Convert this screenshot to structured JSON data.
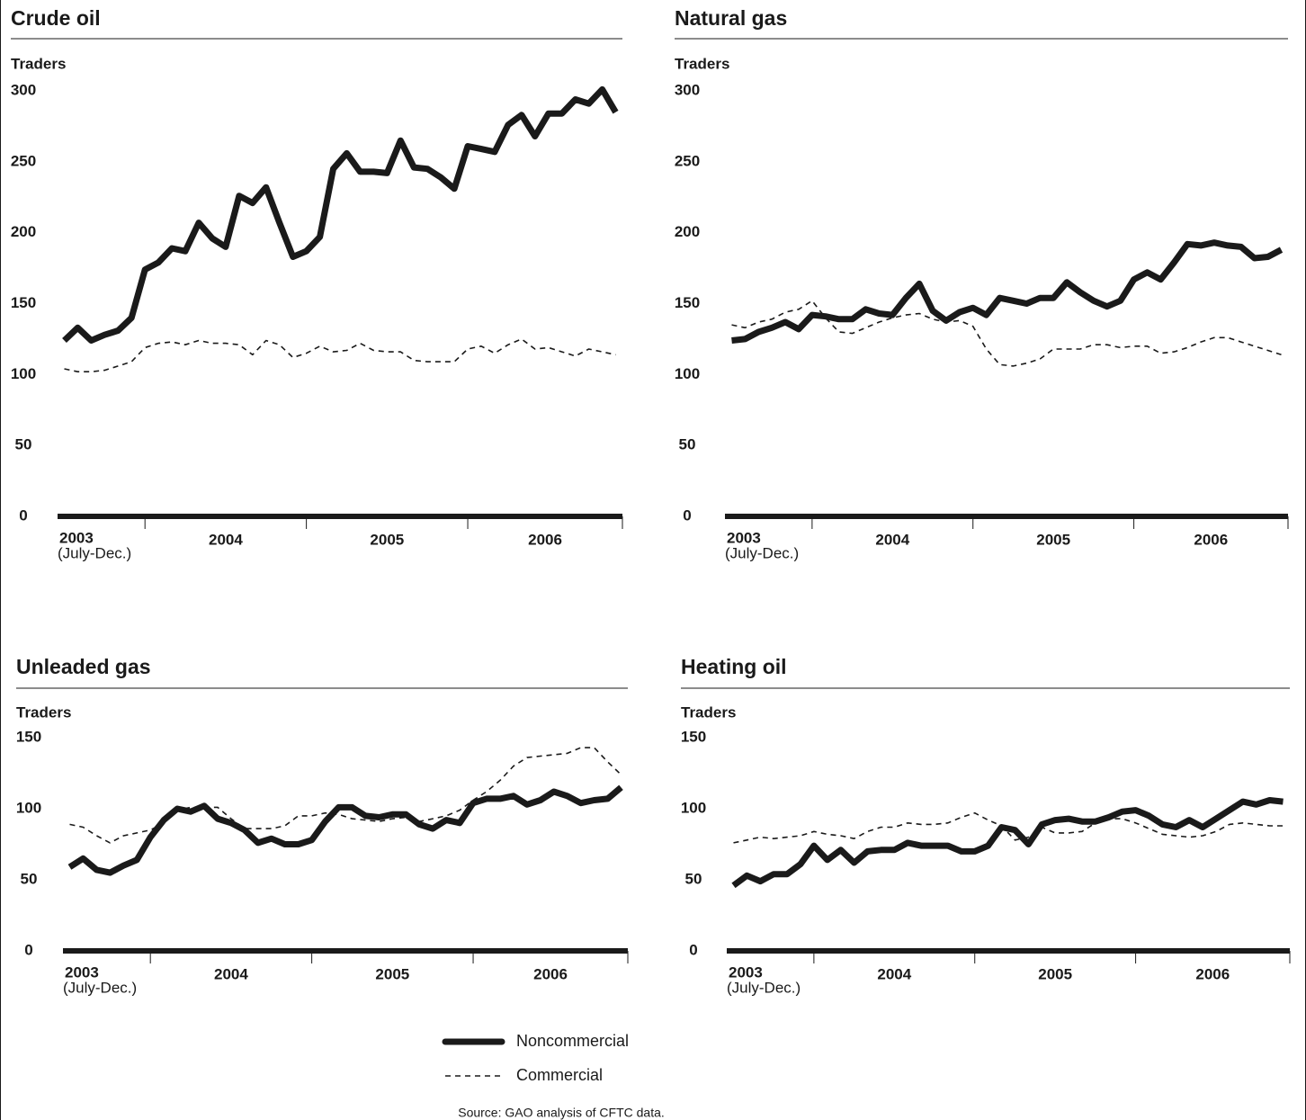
{
  "chart_data": [
    {
      "type": "line",
      "title": "Crude oil",
      "y_label": "Traders",
      "categories": [
        "2003",
        null,
        null,
        null,
        null,
        null,
        "2004",
        null,
        null,
        null,
        null,
        null,
        null,
        null,
        null,
        null,
        null,
        null,
        "2005",
        null,
        null,
        null,
        null,
        null,
        null,
        null,
        null,
        null,
        null,
        null,
        "2006",
        null,
        null,
        null,
        null,
        null,
        null,
        null,
        null,
        null,
        null,
        null
      ],
      "x_note": "(July-Dec.)",
      "ylim": [
        0,
        300
      ],
      "yticks": [
        0,
        50,
        100,
        150,
        200,
        250,
        300
      ],
      "series": [
        {
          "name": "Noncommercial",
          "color": "#1a1a1a",
          "style": "solid",
          "values": [
            124,
            133,
            124,
            128,
            131,
            140,
            174,
            179,
            189,
            187,
            207,
            196,
            190,
            226,
            221,
            232,
            207,
            183,
            187,
            197,
            245,
            256,
            243,
            243,
            242,
            265,
            246,
            245,
            239,
            231,
            261,
            259,
            257,
            276,
            283,
            268,
            284,
            284,
            294,
            291,
            301,
            285
          ]
        },
        {
          "name": "Commercial",
          "color": "#1a1a1a",
          "style": "dashed",
          "values": [
            104,
            102,
            102,
            103,
            106,
            109,
            119,
            122,
            123,
            121,
            124,
            122,
            122,
            121,
            114,
            124,
            121,
            112,
            115,
            120,
            116,
            117,
            122,
            117,
            116,
            116,
            110,
            109,
            109,
            109,
            118,
            120,
            115,
            121,
            125,
            118,
            119,
            116,
            113,
            118,
            116,
            114
          ]
        }
      ]
    },
    {
      "type": "line",
      "title": "Natural gas",
      "y_label": "Traders",
      "categories": [
        "2003",
        null,
        null,
        null,
        null,
        null,
        "2004",
        null,
        null,
        null,
        null,
        null,
        null,
        null,
        null,
        null,
        null,
        null,
        "2005",
        null,
        null,
        null,
        null,
        null,
        null,
        null,
        null,
        null,
        null,
        null,
        "2006",
        null,
        null,
        null,
        null,
        null,
        null,
        null,
        null,
        null,
        null,
        null
      ],
      "x_note": "(July-Dec.)",
      "ylim": [
        0,
        300
      ],
      "yticks": [
        0,
        50,
        100,
        150,
        200,
        250,
        300
      ],
      "series": [
        {
          "name": "Noncommercial",
          "color": "#1a1a1a",
          "style": "solid",
          "values": [
            124,
            125,
            130,
            133,
            137,
            132,
            142,
            141,
            139,
            139,
            146,
            143,
            142,
            154,
            164,
            145,
            138,
            144,
            147,
            142,
            154,
            152,
            150,
            154,
            154,
            165,
            158,
            152,
            148,
            152,
            167,
            172,
            167,
            179,
            192,
            191,
            193,
            191,
            190,
            182,
            183,
            188
          ]
        },
        {
          "name": "Commercial",
          "color": "#1a1a1a",
          "style": "dashed",
          "values": [
            135,
            133,
            137,
            139,
            144,
            146,
            152,
            140,
            130,
            129,
            133,
            137,
            140,
            142,
            143,
            139,
            137,
            138,
            134,
            118,
            107,
            106,
            108,
            111,
            118,
            118,
            118,
            121,
            121,
            119,
            120,
            120,
            115,
            116,
            119,
            123,
            126,
            126,
            123,
            120,
            117,
            114
          ]
        }
      ]
    },
    {
      "type": "line",
      "title": "Unleaded gas",
      "y_label": "Traders",
      "categories": [
        "2003",
        null,
        null,
        null,
        null,
        null,
        "2004",
        null,
        null,
        null,
        null,
        null,
        null,
        null,
        null,
        null,
        null,
        null,
        "2005",
        null,
        null,
        null,
        null,
        null,
        null,
        null,
        null,
        null,
        null,
        null,
        "2006",
        null,
        null,
        null,
        null,
        null,
        null,
        null,
        null,
        null,
        null,
        null
      ],
      "x_note": "(July-Dec.)",
      "ylim": [
        0,
        150
      ],
      "yticks": [
        0,
        50,
        100,
        150
      ],
      "series": [
        {
          "name": "Noncommercial",
          "color": "#1a1a1a",
          "style": "solid",
          "values": [
            59,
            65,
            57,
            55,
            60,
            64,
            80,
            92,
            100,
            98,
            102,
            93,
            90,
            85,
            76,
            79,
            75,
            75,
            78,
            91,
            101,
            101,
            95,
            94,
            96,
            96,
            89,
            86,
            92,
            90,
            104,
            107,
            107,
            109,
            103,
            106,
            112,
            109,
            104,
            106,
            107,
            115
          ]
        },
        {
          "name": "Commercial",
          "color": "#1a1a1a",
          "style": "dashed",
          "values": [
            89,
            87,
            81,
            76,
            81,
            83,
            85,
            90,
            99,
            101,
            101,
            101,
            93,
            86,
            86,
            86,
            88,
            95,
            95,
            97,
            96,
            93,
            92,
            91,
            93,
            94,
            91,
            93,
            95,
            99,
            106,
            112,
            120,
            130,
            136,
            137,
            138,
            139,
            143,
            143,
            133,
            124
          ]
        }
      ]
    },
    {
      "type": "line",
      "title": "Heating oil",
      "y_label": "Traders",
      "categories": [
        "2003",
        null,
        null,
        null,
        null,
        null,
        "2004",
        null,
        null,
        null,
        null,
        null,
        null,
        null,
        null,
        null,
        null,
        null,
        "2005",
        null,
        null,
        null,
        null,
        null,
        null,
        null,
        null,
        null,
        null,
        null,
        "2006",
        null,
        null,
        null,
        null,
        null,
        null,
        null,
        null,
        null,
        null,
        null
      ],
      "x_note": "(July-Dec.)",
      "ylim": [
        0,
        150
      ],
      "yticks": [
        0,
        50,
        100,
        150
      ],
      "series": [
        {
          "name": "Noncommercial",
          "color": "#1a1a1a",
          "style": "solid",
          "values": [
            46,
            53,
            49,
            54,
            54,
            61,
            74,
            64,
            71,
            62,
            70,
            71,
            71,
            76,
            74,
            74,
            74,
            70,
            70,
            74,
            87,
            85,
            75,
            89,
            92,
            93,
            91,
            91,
            94,
            98,
            99,
            95,
            89,
            87,
            92,
            87,
            93,
            99,
            105,
            103,
            106,
            105
          ]
        },
        {
          "name": "Commercial",
          "color": "#1a1a1a",
          "style": "dashed",
          "values": [
            76,
            78,
            80,
            79,
            80,
            81,
            84,
            82,
            81,
            79,
            84,
            87,
            87,
            90,
            89,
            89,
            90,
            94,
            97,
            92,
            88,
            78,
            80,
            87,
            83,
            83,
            84,
            90,
            93,
            93,
            90,
            86,
            82,
            81,
            80,
            81,
            84,
            89,
            90,
            89,
            88,
            88
          ]
        }
      ]
    }
  ],
  "source": "Source: GAO analysis of CFTC data."
}
